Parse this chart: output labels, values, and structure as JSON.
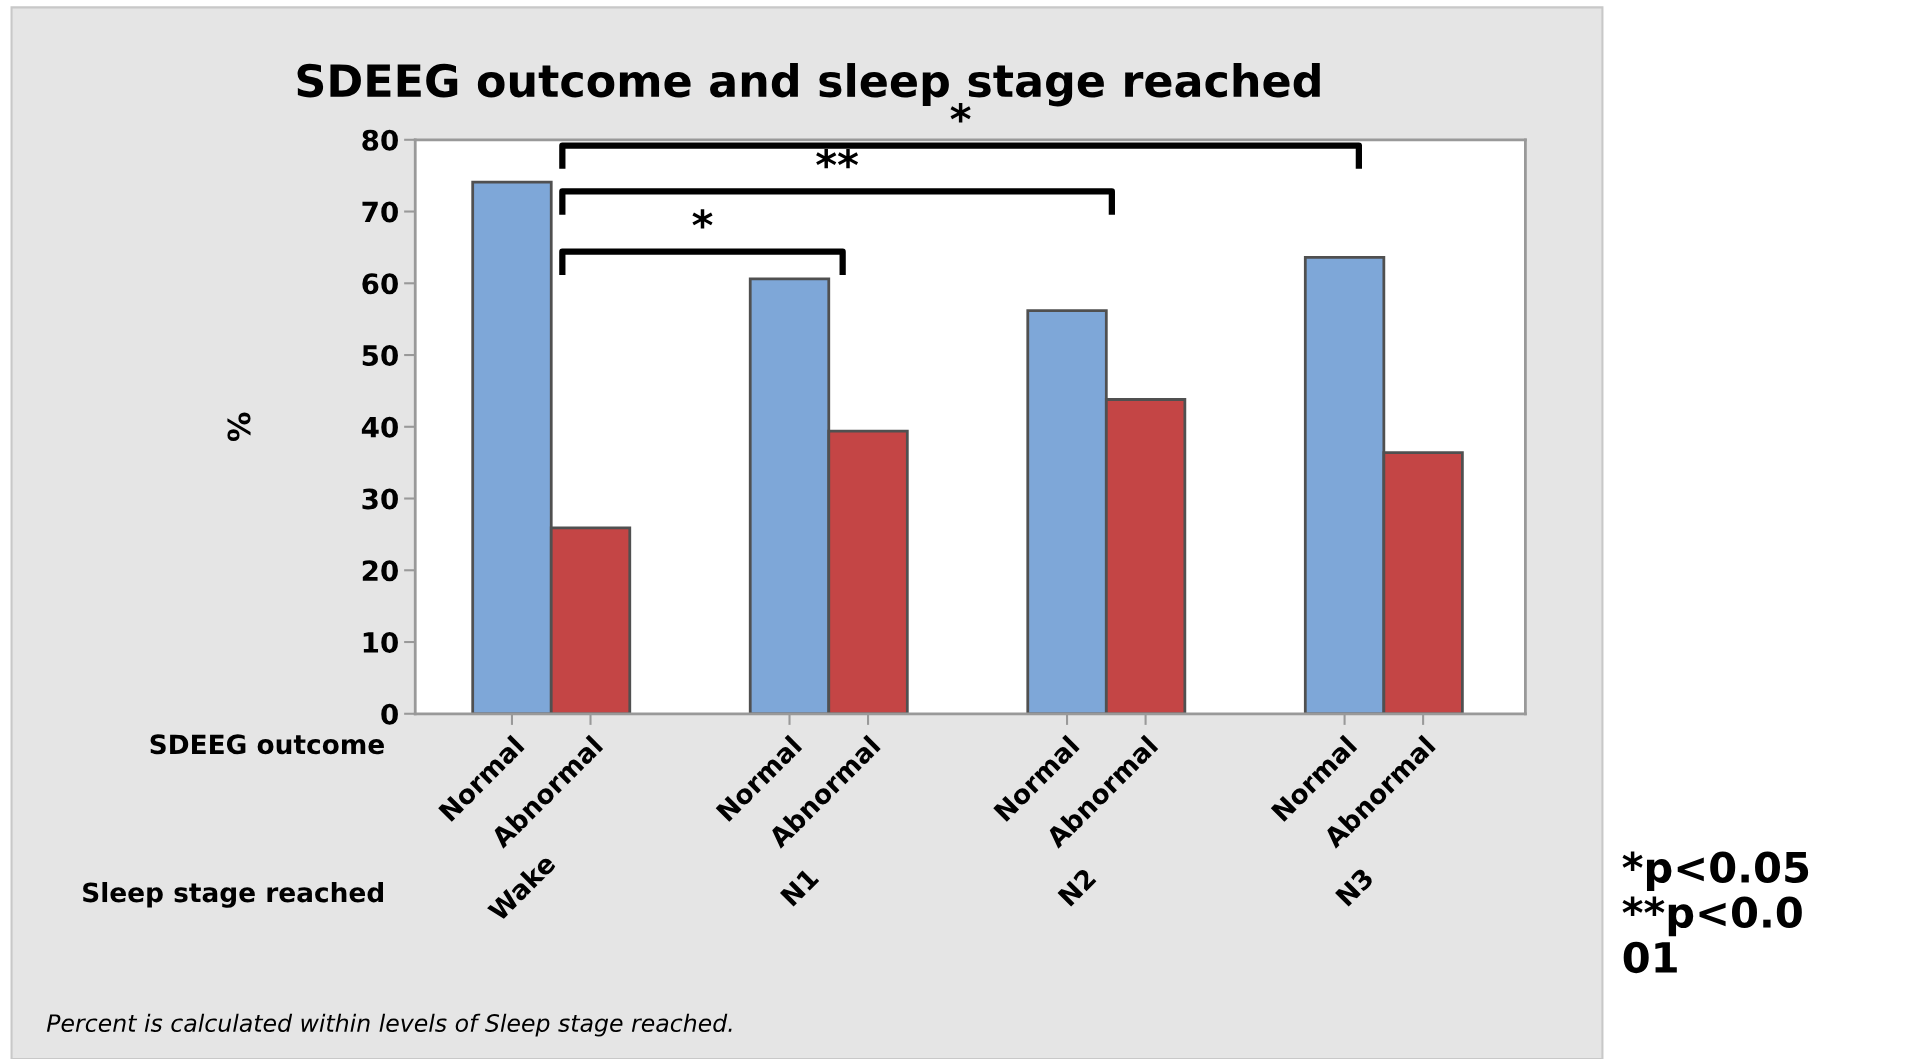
{
  "chart_data": {
    "type": "bar",
    "title": "SDEEG outcome and sleep stage reached",
    "ylabel": "%",
    "categories": [
      "Wake",
      "N1",
      "N2",
      "N3"
    ],
    "series": [
      {
        "name": "Normal",
        "color": "#7ea7d8",
        "values": [
          74.1,
          60.6,
          56.2,
          63.6
        ]
      },
      {
        "name": "Abnormal",
        "color": "#c44545",
        "values": [
          25.9,
          39.4,
          43.8,
          36.4
        ]
      }
    ],
    "ylim": [
      0,
      80
    ],
    "yticks": [
      0,
      10,
      20,
      30,
      40,
      50,
      60,
      70,
      80
    ],
    "grid": false,
    "legend": false,
    "annotations": [
      "SDEEG outcome",
      "Sleep stage reached",
      "*",
      "**",
      "*",
      "Percent is calculated within levels of Sleep stage reached.",
      "*p<0.05\n**p<0.0\n01"
    ]
  }
}
